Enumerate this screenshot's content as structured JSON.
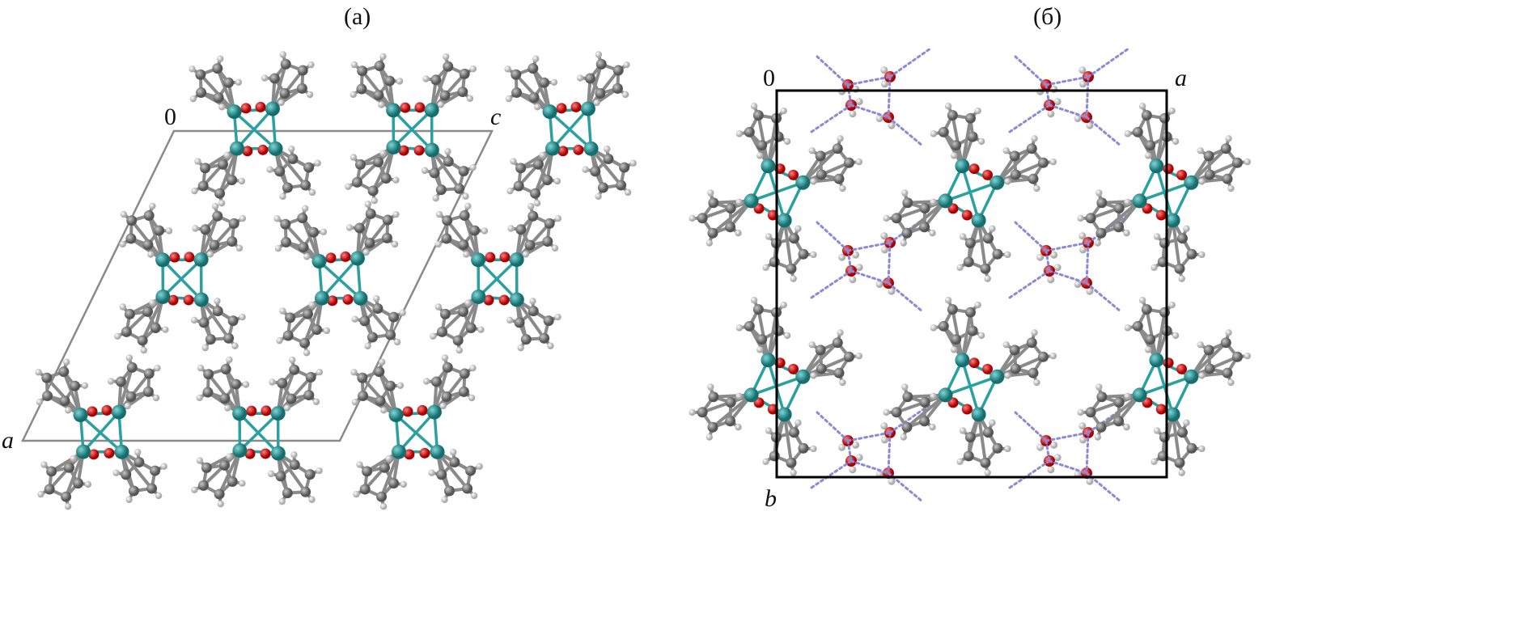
{
  "panels": [
    {
      "label": "(a)",
      "axes": {
        "origin": "0",
        "axis1": "c",
        "axis2": "a"
      }
    },
    {
      "label": "(б)",
      "axes": {
        "origin": "0",
        "axis1": "a",
        "axis2": "b"
      }
    }
  ],
  "colors": {
    "metal": "#1f8f8f",
    "metal_bond": "#2aa0a0",
    "carbon": "#7a7a7a",
    "hydrogen": "#e6e6e6",
    "oxygen": "#d0161b",
    "hbond": "#8a8ad8",
    "cell_a": "#8a8a8a",
    "cell_b": "#000000"
  }
}
